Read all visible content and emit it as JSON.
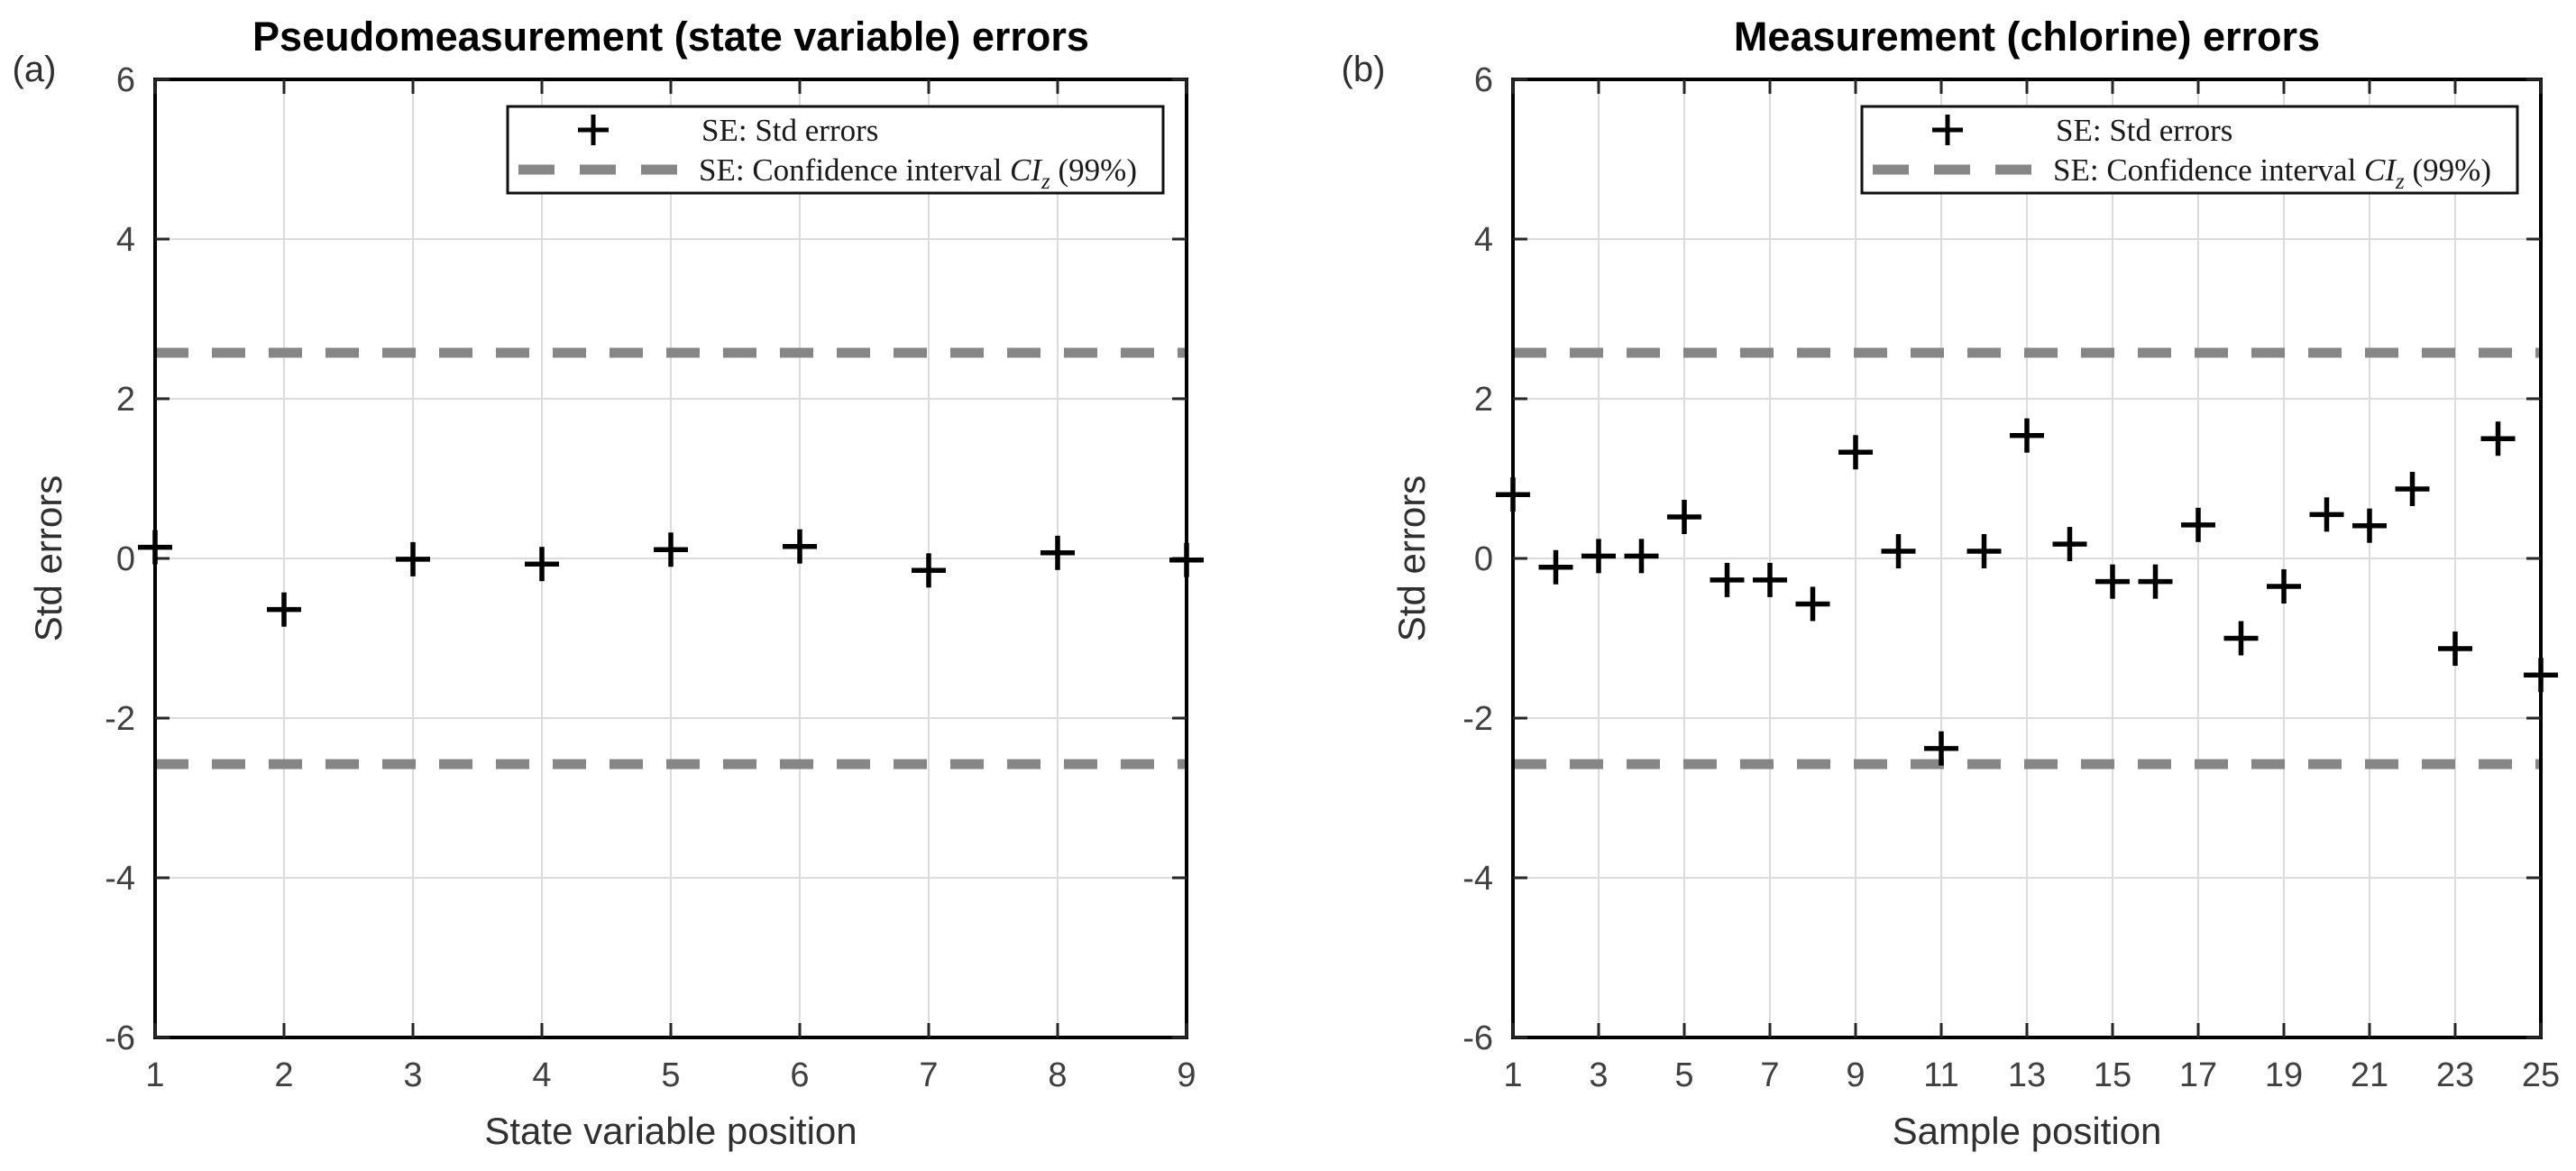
{
  "figure": {
    "background": "#ffffff",
    "colors": {
      "marker": "#000000",
      "ci_line": "#868686",
      "grid": "#dcdcdc",
      "axis_border": "#000000",
      "tick_mark": "#262626",
      "tick_label": "#404040",
      "title": "#000000",
      "axis_label": "#303030",
      "legend_border": "#111111",
      "legend_bg": "#ffffff",
      "legend_text": "#1a1a1a"
    },
    "marker_glyph": "+"
  },
  "legend": {
    "entries": [
      {
        "type": "plus-marker",
        "label": "SE: Std errors"
      },
      {
        "type": "dashed-line",
        "label_prefix": "SE: Confidence interval ",
        "label_var": "CI",
        "label_sub": "z",
        "label_suffix": " (99%)"
      }
    ]
  },
  "chart_data": [
    {
      "panel_label": "(a)",
      "type": "scatter",
      "title": "Pseudomeasurement (state variable) errors",
      "xlabel": "State variable position",
      "ylabel": "Std errors",
      "x": [
        1,
        2,
        3,
        4,
        5,
        6,
        7,
        8,
        9
      ],
      "y": [
        0.14,
        -0.64,
        -0.01,
        -0.07,
        0.11,
        0.15,
        -0.15,
        0.07,
        -0.02
      ],
      "xticks": [
        1,
        2,
        3,
        4,
        5,
        6,
        7,
        8,
        9
      ],
      "yticks": [
        -6,
        -4,
        -2,
        0,
        2,
        4,
        6
      ],
      "xlim": [
        1,
        9
      ],
      "ylim": [
        -6,
        6
      ],
      "grid": true,
      "confidence_interval": 2.576,
      "confidence_level": "99%",
      "legend_position": "northeast"
    },
    {
      "panel_label": "(b)",
      "type": "scatter",
      "title": "Measurement (chlorine) errors",
      "xlabel": "Sample position",
      "ylabel": "Std errors",
      "x": [
        1,
        2,
        3,
        4,
        5,
        6,
        7,
        8,
        9,
        10,
        11,
        12,
        13,
        14,
        15,
        16,
        17,
        18,
        19,
        20,
        21,
        22,
        23,
        24,
        25
      ],
      "y": [
        0.8,
        -0.11,
        0.03,
        0.03,
        0.52,
        -0.27,
        -0.27,
        -0.57,
        1.33,
        0.09,
        -2.38,
        0.09,
        1.54,
        0.18,
        -0.29,
        -0.29,
        0.42,
        -1.0,
        -0.35,
        0.55,
        0.41,
        0.87,
        -1.13,
        1.5,
        -1.46
      ],
      "xticks": [
        1,
        3,
        5,
        7,
        9,
        11,
        13,
        15,
        17,
        19,
        21,
        23,
        25
      ],
      "yticks": [
        -6,
        -4,
        -2,
        0,
        2,
        4,
        6
      ],
      "xlim": [
        1,
        25
      ],
      "ylim": [
        -6,
        6
      ],
      "grid": true,
      "confidence_interval": 2.576,
      "confidence_level": "99%",
      "legend_position": "northeast"
    }
  ]
}
